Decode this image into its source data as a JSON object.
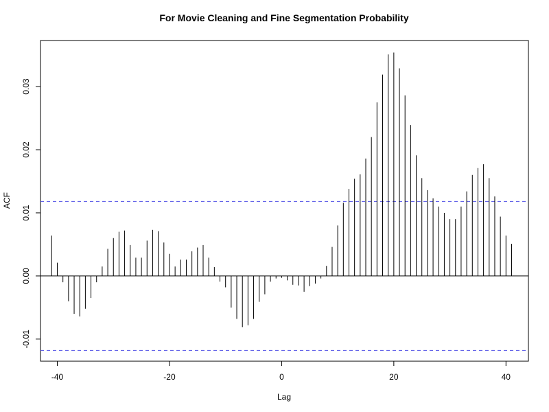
{
  "chart_data": {
    "type": "bar",
    "title": "For Movie Cleaning and Fine Segmentation Probability",
    "xlabel": "Lag",
    "ylabel": "ACF",
    "xlim": [
      -43,
      44
    ],
    "ylim": [
      -0.0135,
      0.0373
    ],
    "x_ticks": [
      -40,
      -20,
      0,
      20,
      40
    ],
    "x_tick_labels": [
      "-40",
      "-20",
      "0",
      "20",
      "40"
    ],
    "y_ticks": [
      -0.01,
      0.0,
      0.01,
      0.02,
      0.03
    ],
    "y_tick_labels": [
      "-0.01",
      "0.00",
      "0.01",
      "0.02",
      "0.03"
    ],
    "confidence_bounds": [
      0.0118,
      -0.0118
    ],
    "colors": {
      "bars": "#000000",
      "confidence_line": "#4e4ee6",
      "zero_line": "#000000"
    },
    "grid": false,
    "lags": [
      -41,
      -40,
      -39,
      -38,
      -37,
      -36,
      -35,
      -34,
      -33,
      -32,
      -31,
      -30,
      -29,
      -28,
      -27,
      -26,
      -25,
      -24,
      -23,
      -22,
      -21,
      -20,
      -19,
      -18,
      -17,
      -16,
      -15,
      -14,
      -13,
      -12,
      -11,
      -10,
      -9,
      -8,
      -7,
      -6,
      -5,
      -4,
      -3,
      -2,
      -1,
      0,
      1,
      2,
      3,
      4,
      5,
      6,
      7,
      8,
      9,
      10,
      11,
      12,
      13,
      14,
      15,
      16,
      17,
      18,
      19,
      20,
      21,
      22,
      23,
      24,
      25,
      26,
      27,
      28,
      29,
      30,
      31,
      32,
      33,
      34,
      35,
      36,
      37,
      38,
      39,
      40,
      41
    ],
    "values": [
      0.0064,
      0.0021,
      -0.001,
      -0.004,
      -0.006,
      -0.0064,
      -0.0052,
      -0.0035,
      -0.001,
      0.0015,
      0.0043,
      0.006,
      0.007,
      0.0072,
      0.0049,
      0.0029,
      0.0029,
      0.0056,
      0.0073,
      0.0071,
      0.0053,
      0.0035,
      0.0015,
      0.0026,
      0.0026,
      0.0039,
      0.0045,
      0.0049,
      0.0029,
      0.0014,
      -0.0009,
      -0.0018,
      -0.005,
      -0.0068,
      -0.0081,
      -0.0078,
      -0.0068,
      -0.0041,
      -0.0029,
      -0.0009,
      -0.0004,
      -0.0003,
      -0.0007,
      -0.0014,
      -0.0015,
      -0.0025,
      -0.0016,
      -0.0012,
      -0.0004,
      0.0016,
      0.0046,
      0.008,
      0.0116,
      0.0138,
      0.0154,
      0.0161,
      0.0186,
      0.022,
      0.0275,
      0.0319,
      0.0351,
      0.0354,
      0.0329,
      0.0286,
      0.0239,
      0.0191,
      0.0155,
      0.0136,
      0.0123,
      0.011,
      0.01,
      0.009,
      0.009,
      0.011,
      0.0134,
      0.016,
      0.0171,
      0.0177,
      0.0155,
      0.0126,
      0.0094,
      0.0064,
      0.0051
    ]
  }
}
